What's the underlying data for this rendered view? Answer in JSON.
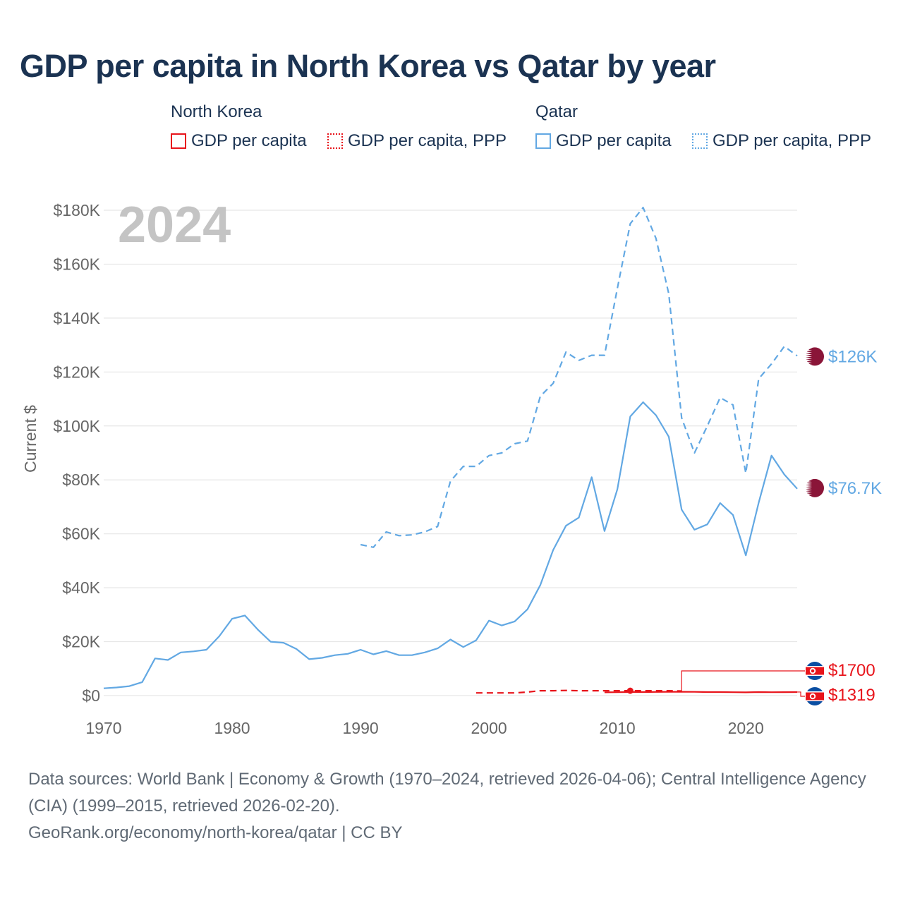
{
  "title": "GDP per capita in North Korea vs Qatar by year",
  "legend": {
    "north_korea": {
      "label": "North Korea",
      "gdp": "GDP per capita",
      "ppp": "GDP per capita, PPP"
    },
    "qatar": {
      "label": "Qatar",
      "gdp": "GDP per capita",
      "ppp": "GDP per capita, PPP"
    }
  },
  "colors": {
    "north_korea": "#e8141b",
    "qatar": "#62a8e3",
    "grid": "#e6e6e6",
    "axis_text": "#666666",
    "year_watermark": "#c4c4c4"
  },
  "footer": {
    "sources": "Data sources: World Bank | Economy & Growth (1970–2024, retrieved 2026-04-06); Central Intelligence Agency (CIA) (1999–2015, retrieved 2026-02-20).",
    "credit": "GeoRank.org/economy/north-korea/qatar | CC BY"
  },
  "chart_data": {
    "type": "line",
    "title": "GDP per capita in North Korea vs Qatar by year",
    "current_year_label": "2024",
    "ylabel": "Current $",
    "xlabel": "",
    "xlim": [
      1970,
      2024
    ],
    "ylim": [
      0,
      180000
    ],
    "x_ticks": [
      1970,
      1980,
      1990,
      2000,
      2010,
      2020
    ],
    "x_tick_labels": [
      "1970",
      "1980",
      "1990",
      "2000",
      "2010",
      "2020"
    ],
    "y_ticks": [
      0,
      20000,
      40000,
      60000,
      80000,
      100000,
      120000,
      140000,
      160000,
      180000
    ],
    "y_tick_labels": [
      "$0",
      "$20K",
      "$40K",
      "$60K",
      "$80K",
      "$100K",
      "$120K",
      "$140K",
      "$160K",
      "$180K"
    ],
    "grid": true,
    "series": [
      {
        "name": "Qatar GDP per capita",
        "country": "Qatar",
        "flag": "qatar-flag-icon",
        "style": "solid",
        "x": [
          1970,
          1971,
          1972,
          1973,
          1974,
          1975,
          1976,
          1977,
          1978,
          1979,
          1980,
          1981,
          1982,
          1983,
          1984,
          1985,
          1986,
          1987,
          1988,
          1989,
          1990,
          1991,
          1992,
          1993,
          1994,
          1995,
          1996,
          1997,
          1998,
          1999,
          2000,
          2001,
          2002,
          2003,
          2004,
          2005,
          2006,
          2007,
          2008,
          2009,
          2010,
          2011,
          2012,
          2013,
          2014,
          2015,
          2016,
          2017,
          2018,
          2019,
          2020,
          2021,
          2022,
          2023,
          2024
        ],
        "values": [
          2700,
          3000,
          3500,
          5000,
          13800,
          13200,
          16000,
          16400,
          17000,
          22000,
          28500,
          29700,
          24500,
          20000,
          19600,
          17300,
          13500,
          14000,
          15000,
          15500,
          17000,
          15300,
          16500,
          15000,
          15000,
          16000,
          17500,
          20800,
          18000,
          20500,
          27800,
          26000,
          27500,
          32000,
          41000,
          54000,
          63000,
          66000,
          81000,
          61000,
          76500,
          103500,
          108800,
          104000,
          96000,
          69000,
          61500,
          63500,
          71400,
          67000,
          52000,
          71500,
          89000,
          82000,
          76700
        ],
        "end_label": "$76.7K"
      },
      {
        "name": "Qatar GDP per capita, PPP",
        "country": "Qatar",
        "flag": "qatar-flag-icon",
        "style": "dashed",
        "x": [
          1990,
          1991,
          1992,
          1993,
          1994,
          1995,
          1996,
          1997,
          1998,
          1999,
          2000,
          2001,
          2002,
          2003,
          2004,
          2005,
          2006,
          2007,
          2008,
          2009,
          2010,
          2011,
          2012,
          2013,
          2014,
          2015,
          2016,
          2017,
          2018,
          2019,
          2020,
          2021,
          2022,
          2023,
          2024
        ],
        "values": [
          56000,
          55000,
          60700,
          59300,
          59600,
          60700,
          62700,
          79500,
          85000,
          85000,
          89000,
          90000,
          93400,
          94400,
          111000,
          115800,
          127400,
          124300,
          126200,
          126200,
          151000,
          175000,
          181000,
          169600,
          149000,
          103000,
          90000,
          100000,
          110500,
          107800,
          82500,
          117500,
          123000,
          129500,
          126000
        ],
        "end_label": "$126K"
      },
      {
        "name": "North Korea GDP per capita",
        "country": "North Korea",
        "flag": "north-korea-flag-icon",
        "style": "solid",
        "x": [
          2009,
          2010,
          2011,
          2012,
          2013,
          2014,
          2015,
          2016,
          2017,
          2018,
          2019,
          2020,
          2021,
          2022,
          2023,
          2024
        ],
        "values": [
          1200,
          1250,
          1300,
          1320,
          1350,
          1400,
          1400,
          1380,
          1320,
          1300,
          1250,
          1200,
          1300,
          1250,
          1290,
          1319
        ],
        "end_label": "$1319"
      },
      {
        "name": "North Korea GDP per capita, PPP",
        "country": "North Korea",
        "flag": "north-korea-flag-icon",
        "style": "dashed",
        "x": [
          1999,
          2000,
          2001,
          2002,
          2003,
          2004,
          2005,
          2006,
          2007,
          2008,
          2009,
          2010,
          2011,
          2012,
          2013,
          2014,
          2015
        ],
        "values": [
          1000,
          1000,
          1000,
          1000,
          1300,
          1800,
          1800,
          1900,
          1800,
          1800,
          1800,
          1800,
          1800,
          1800,
          1800,
          1800,
          1700
        ],
        "end_label": "$1700"
      }
    ]
  }
}
